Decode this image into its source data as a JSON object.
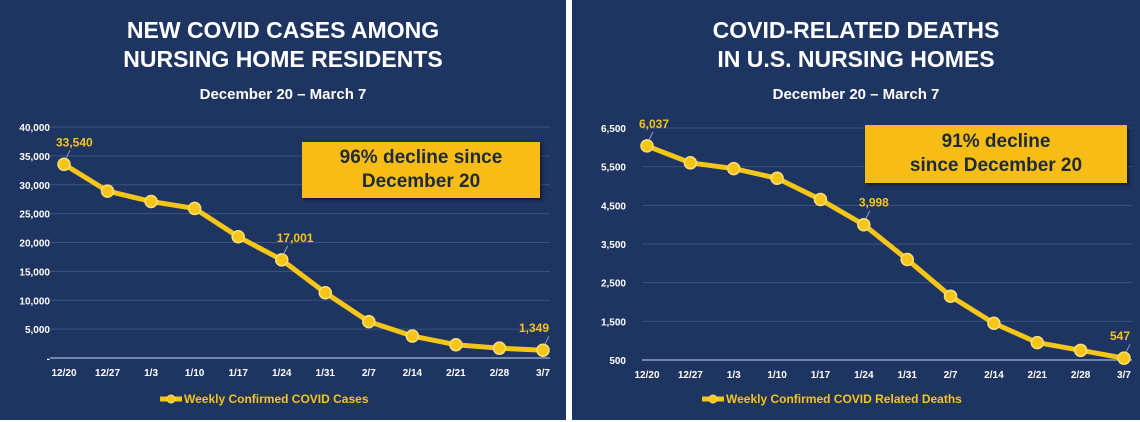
{
  "colors": {
    "background": "#1e3461",
    "line": "#f5c518",
    "callout": "#f7bd16",
    "text": "#ffffff"
  },
  "chart_data": [
    {
      "type": "line",
      "title": "NEW COVID CASES AMONG NURSING HOME RESIDENTS",
      "title_lines": [
        "NEW COVID CASES AMONG",
        "NURSING HOME RESIDENTS"
      ],
      "subtitle": "December 20 – March 7",
      "callout_lines": [
        "96% decline since",
        "December 20"
      ],
      "categories": [
        "12/20",
        "12/27",
        "1/3",
        "1/10",
        "1/17",
        "1/24",
        "1/31",
        "2/7",
        "2/14",
        "2/21",
        "2/28",
        "3/7"
      ],
      "series": [
        {
          "name": "Weekly Confirmed COVID Cases",
          "values": [
            33540,
            28900,
            27100,
            25900,
            21000,
            17001,
            11300,
            6300,
            3800,
            2300,
            1700,
            1349
          ]
        }
      ],
      "data_labels": [
        {
          "index": 0,
          "text": "33,540"
        },
        {
          "index": 5,
          "text": "17,001"
        },
        {
          "index": 11,
          "text": "1,349"
        }
      ],
      "yticks": [
        {
          "v": 0,
          "t": "-"
        },
        {
          "v": 5000,
          "t": "5,000"
        },
        {
          "v": 10000,
          "t": "10,000"
        },
        {
          "v": 15000,
          "t": "15,000"
        },
        {
          "v": 20000,
          "t": "20,000"
        },
        {
          "v": 25000,
          "t": "25,000"
        },
        {
          "v": 30000,
          "t": "30,000"
        },
        {
          "v": 35000,
          "t": "35,000"
        },
        {
          "v": 40000,
          "t": "40,000"
        }
      ],
      "ylim": [
        0,
        40000
      ],
      "grid": true,
      "legend": "bottom"
    },
    {
      "type": "line",
      "title": "COVID-RELATED DEATHS IN U.S. NURSING HOMES",
      "title_lines": [
        "COVID-RELATED DEATHS",
        "IN U.S. NURSING HOMES"
      ],
      "subtitle": "December 20 – March 7",
      "callout_lines": [
        "91% decline",
        "since December 20"
      ],
      "categories": [
        "12/20",
        "12/27",
        "1/3",
        "1/10",
        "1/17",
        "1/24",
        "1/31",
        "2/7",
        "2/14",
        "2/21",
        "2/28",
        "3/7"
      ],
      "series": [
        {
          "name": "Weekly Confirmed COVID Related Deaths",
          "values": [
            6037,
            5600,
            5450,
            5200,
            4650,
            3998,
            3100,
            2150,
            1450,
            950,
            750,
            547
          ]
        }
      ],
      "data_labels": [
        {
          "index": 0,
          "text": "6,037"
        },
        {
          "index": 5,
          "text": "3,998"
        },
        {
          "index": 11,
          "text": "547"
        }
      ],
      "yticks": [
        {
          "v": 500,
          "t": "500"
        },
        {
          "v": 1500,
          "t": "1,500"
        },
        {
          "v": 2500,
          "t": "2,500"
        },
        {
          "v": 3500,
          "t": "3,500"
        },
        {
          "v": 4500,
          "t": "4,500"
        },
        {
          "v": 5500,
          "t": "5,500"
        },
        {
          "v": 6500,
          "t": "6,500"
        }
      ],
      "ylim": [
        500,
        6500
      ],
      "grid": true,
      "legend": "bottom"
    }
  ]
}
